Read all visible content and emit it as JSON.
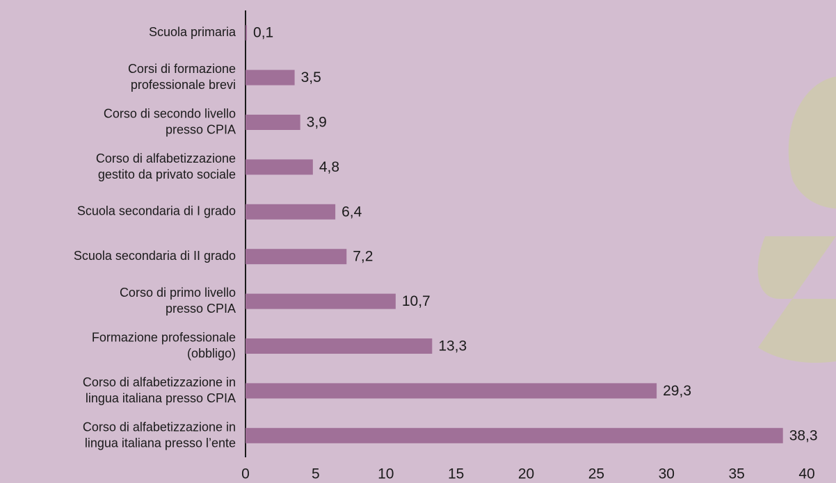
{
  "chart_data": {
    "type": "bar",
    "orientation": "horizontal",
    "categories": [
      "Scuola primaria",
      "Corsi di formazione\nprofessionale brevi",
      "Corso di secondo livello\npresso CPIA",
      "Corso di alfabetizzazione\ngestito da privato sociale",
      "Scuola secondaria di I grado",
      "Scuola secondaria di II grado",
      "Corso di primo livello\npresso CPIA",
      "Formazione professionale\n(obbligo)",
      "Corso di alfabetizzazione in\nlingua italiana presso CPIA",
      "Corso di alfabetizzazione in\nlingua italiana presso l’ente"
    ],
    "values": [
      0.1,
      3.5,
      3.9,
      4.8,
      6.4,
      7.2,
      10.7,
      13.3,
      29.3,
      38.3
    ],
    "value_labels": [
      "0,1",
      "3,5",
      "3,9",
      "4,8",
      "6,4",
      "7,2",
      "10,7",
      "13,3",
      "29,3",
      "38,3"
    ],
    "color": "#a07098",
    "xlim": [
      0,
      40
    ],
    "xticks": [
      0,
      5,
      10,
      15,
      20,
      25,
      30,
      35,
      40
    ],
    "grid": false
  }
}
